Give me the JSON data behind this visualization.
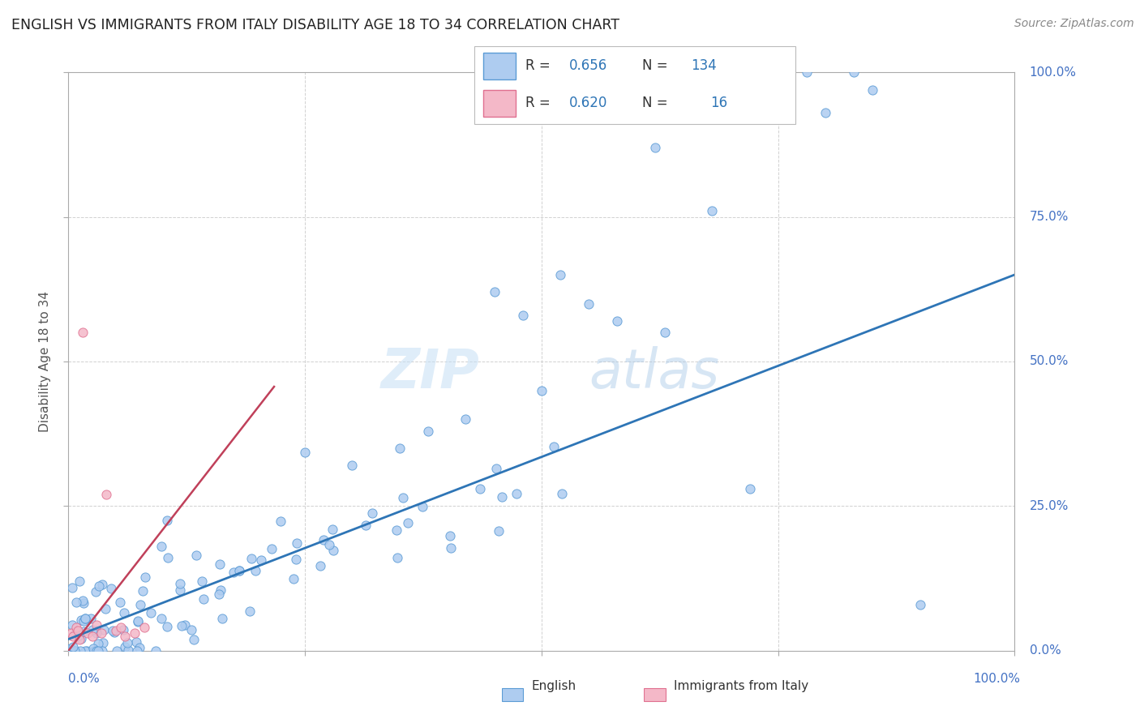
{
  "title": "ENGLISH VS IMMIGRANTS FROM ITALY DISABILITY AGE 18 TO 34 CORRELATION CHART",
  "source": "Source: ZipAtlas.com",
  "ylabel": "Disability Age 18 to 34",
  "english_R": 0.656,
  "english_N": 134,
  "italy_R": 0.62,
  "italy_N": 16,
  "watermark_zip": "ZIP",
  "watermark_atlas": "atlas",
  "background_color": "#ffffff",
  "english_color": "#aeccf0",
  "english_edge_color": "#5b9bd5",
  "english_line_color": "#2e75b6",
  "italy_color": "#f4b8c8",
  "italy_edge_color": "#e07090",
  "italy_line_color": "#c0405a",
  "grid_color": "#cccccc",
  "tick_label_color": "#4472c4",
  "right_label_color": "#4472c4"
}
